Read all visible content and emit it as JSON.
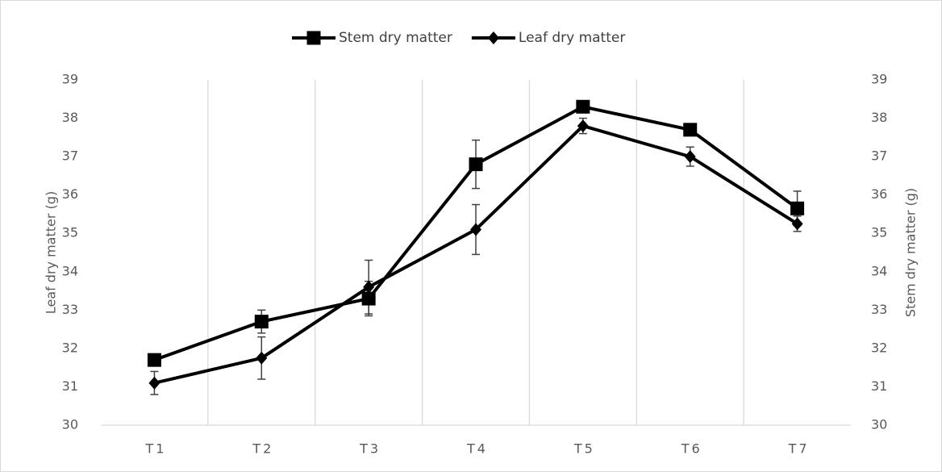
{
  "chart_data": {
    "type": "line",
    "categories": [
      "T1",
      "T2",
      "T3",
      "T4",
      "T5",
      "T6",
      "T7"
    ],
    "series": [
      {
        "name": "Stem dry matter",
        "color": "#000000",
        "marker": "square",
        "axis": "y2",
        "values": [
          31.7,
          32.7,
          33.3,
          36.8,
          38.3,
          37.7,
          35.65
        ],
        "errors": [
          0.1,
          0.3,
          0.45,
          0.63,
          0.15,
          0.1,
          0.45
        ]
      },
      {
        "name": "Leaf dry matter",
        "color": "#000000",
        "marker": "diamond",
        "values": [
          31.1,
          31.75,
          33.6,
          35.1,
          37.8,
          37.0,
          35.25
        ],
        "errors": [
          0.3,
          0.55,
          0.7,
          0.65,
          0.2,
          0.25,
          0.2
        ]
      }
    ],
    "ylabel": "Leaf dry matter (g)",
    "y2label": "Stem dry matter (g)",
    "ylim": [
      30,
      39
    ],
    "yticks": [
      30,
      31,
      32,
      33,
      34,
      35,
      36,
      37,
      38,
      39
    ],
    "y2lim": [
      30,
      39
    ],
    "y2ticks": [
      30,
      31,
      32,
      33,
      34,
      35,
      36,
      37,
      38,
      39
    ],
    "grid": "vertical",
    "legend": "top"
  }
}
